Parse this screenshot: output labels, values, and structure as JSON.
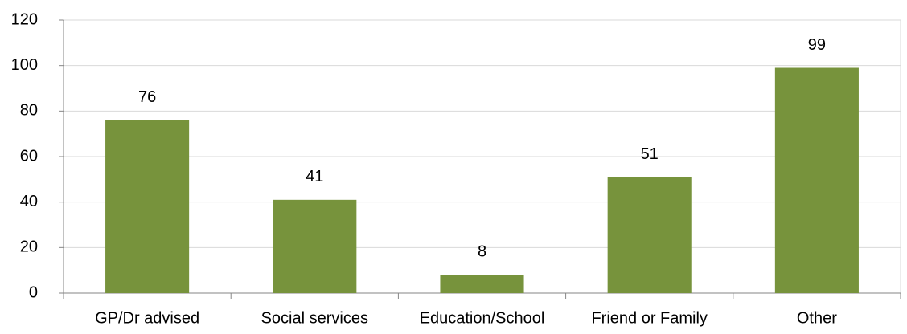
{
  "chart_data": {
    "type": "bar",
    "categories": [
      "GP/Dr advised",
      "Social services",
      "Education/School",
      "Friend or Family",
      "Other"
    ],
    "values": [
      76,
      41,
      8,
      51,
      99
    ],
    "color": "#77933c",
    "ylim": [
      0,
      120
    ],
    "yticks": [
      0,
      20,
      40,
      60,
      80,
      100,
      120
    ],
    "grid": true,
    "data_labels": true
  }
}
